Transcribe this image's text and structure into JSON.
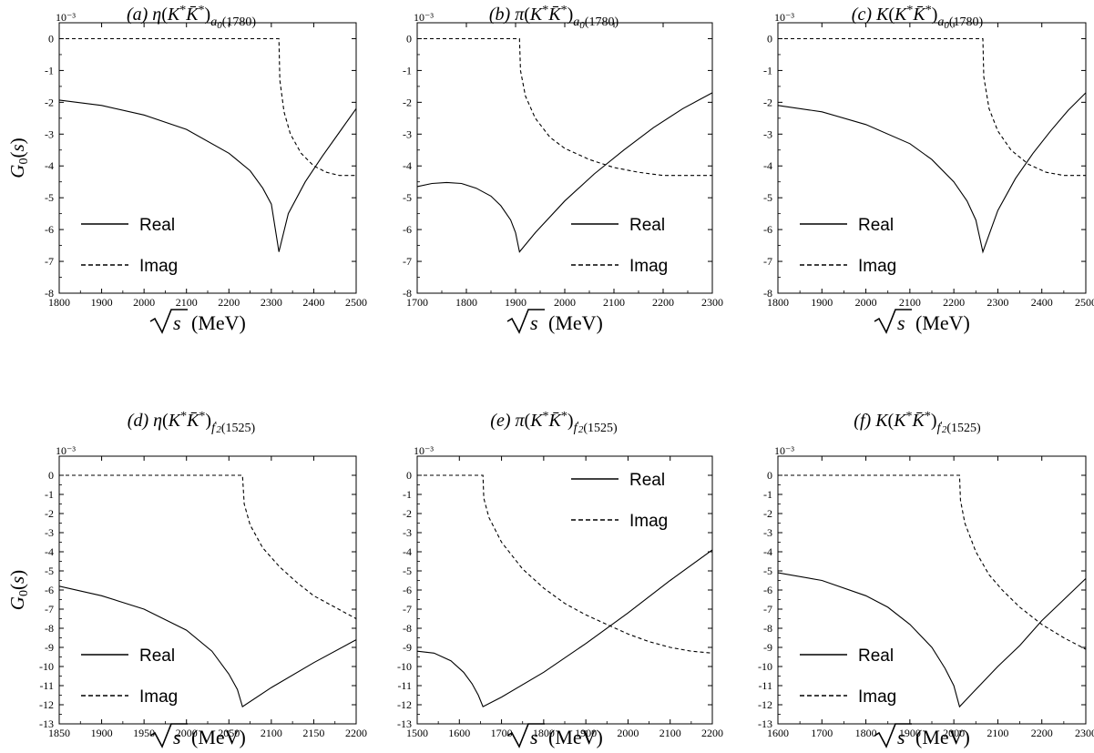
{
  "chart_data": [
    {
      "type": "line",
      "title_prefix": "(a)",
      "title_particle": "η",
      "title_subscript": "a",
      "title_subscript_index": "0",
      "title_subscript_mass": "(1780)",
      "xlabel": "(MeV)",
      "ylabel": "G₀(s)",
      "ylabel_shown": true,
      "y_scale_label": "10⁻³",
      "xlim": [
        1800,
        2500
      ],
      "ylim": [
        -8,
        0.5
      ],
      "xticks": [
        1800,
        1900,
        2000,
        2100,
        2200,
        2300,
        2400,
        2500
      ],
      "yticks": [
        0,
        -1,
        -2,
        -3,
        -4,
        -5,
        -6,
        -7,
        -8
      ],
      "legend": "lower-left",
      "series": [
        {
          "name": "Real",
          "style": "solid",
          "x": [
            1800,
            1900,
            2000,
            2100,
            2200,
            2250,
            2280,
            2300,
            2318,
            2340,
            2380,
            2420,
            2460,
            2500
          ],
          "y": [
            -1.93,
            -2.1,
            -2.4,
            -2.85,
            -3.6,
            -4.15,
            -4.7,
            -5.2,
            -6.7,
            -5.5,
            -4.5,
            -3.7,
            -2.95,
            -2.2
          ]
        },
        {
          "name": "Imag",
          "style": "dashed",
          "x": [
            1800,
            1900,
            2000,
            2100,
            2200,
            2300,
            2318,
            2320,
            2330,
            2345,
            2370,
            2400,
            2430,
            2460,
            2500
          ],
          "y": [
            0,
            0,
            0,
            0,
            0,
            0,
            0,
            -1.3,
            -2.3,
            -3.0,
            -3.6,
            -4.0,
            -4.2,
            -4.3,
            -4.3
          ]
        }
      ]
    },
    {
      "type": "line",
      "title_prefix": "(b)",
      "title_particle": "π",
      "title_subscript": "a",
      "title_subscript_index": "0",
      "title_subscript_mass": "(1780)",
      "xlabel": "(MeV)",
      "ylabel": "",
      "ylabel_shown": false,
      "y_scale_label": "10⁻³",
      "xlim": [
        1700,
        2300
      ],
      "ylim": [
        -8,
        0.5
      ],
      "xticks": [
        1700,
        1800,
        1900,
        2000,
        2100,
        2200,
        2300
      ],
      "yticks": [
        0,
        -1,
        -2,
        -3,
        -4,
        -5,
        -6,
        -7,
        -8
      ],
      "legend": "lower-right",
      "series": [
        {
          "name": "Real",
          "style": "solid",
          "x": [
            1700,
            1730,
            1760,
            1790,
            1820,
            1850,
            1870,
            1890,
            1900,
            1908,
            1940,
            2000,
            2060,
            2120,
            2180,
            2240,
            2300
          ],
          "y": [
            -4.65,
            -4.55,
            -4.52,
            -4.55,
            -4.7,
            -4.95,
            -5.25,
            -5.7,
            -6.1,
            -6.7,
            -6.1,
            -5.1,
            -4.25,
            -3.5,
            -2.8,
            -2.2,
            -1.7
          ]
        },
        {
          "name": "Imag",
          "style": "dashed",
          "x": [
            1700,
            1800,
            1908,
            1910,
            1920,
            1940,
            1970,
            2000,
            2050,
            2100,
            2150,
            2200,
            2250,
            2300
          ],
          "y": [
            0,
            0,
            0,
            -1.0,
            -1.8,
            -2.5,
            -3.1,
            -3.45,
            -3.8,
            -4.05,
            -4.2,
            -4.3,
            -4.3,
            -4.3
          ]
        }
      ]
    },
    {
      "type": "line",
      "title_prefix": "(c)",
      "title_particle": "K",
      "title_subscript": "a",
      "title_subscript_index": "0",
      "title_subscript_mass": "(1780)",
      "xlabel": "(MeV)",
      "ylabel": "",
      "ylabel_shown": false,
      "y_scale_label": "10⁻³",
      "xlim": [
        1800,
        2500
      ],
      "ylim": [
        -8,
        0.5
      ],
      "xticks": [
        1800,
        1900,
        2000,
        2100,
        2200,
        2300,
        2400,
        2500
      ],
      "yticks": [
        0,
        -1,
        -2,
        -3,
        -4,
        -5,
        -6,
        -7,
        -8
      ],
      "legend": "lower-left",
      "series": [
        {
          "name": "Real",
          "style": "solid",
          "x": [
            1800,
            1900,
            2000,
            2100,
            2150,
            2200,
            2230,
            2250,
            2266,
            2300,
            2340,
            2380,
            2420,
            2460,
            2500
          ],
          "y": [
            -2.1,
            -2.3,
            -2.7,
            -3.3,
            -3.8,
            -4.5,
            -5.1,
            -5.7,
            -6.7,
            -5.4,
            -4.4,
            -3.6,
            -2.9,
            -2.25,
            -1.7
          ]
        },
        {
          "name": "Imag",
          "style": "dashed",
          "x": [
            1800,
            1900,
            2000,
            2100,
            2200,
            2266,
            2268,
            2280,
            2300,
            2330,
            2370,
            2410,
            2450,
            2500
          ],
          "y": [
            0,
            0,
            0,
            0,
            0,
            0,
            -1.2,
            -2.2,
            -2.9,
            -3.5,
            -3.95,
            -4.2,
            -4.3,
            -4.3
          ]
        }
      ]
    },
    {
      "type": "line",
      "title_prefix": "(d)",
      "title_particle": "η",
      "title_subscript": "f",
      "title_subscript_index": "2",
      "title_subscript_mass": "(1525)",
      "xlabel": "(MeV)",
      "ylabel": "G₀(s)",
      "ylabel_shown": true,
      "y_scale_label": "10⁻³",
      "xlim": [
        1850,
        2200
      ],
      "ylim": [
        -13,
        1
      ],
      "xticks": [
        1850,
        1900,
        1950,
        2000,
        2050,
        2100,
        2150,
        2200
      ],
      "yticks": [
        0,
        -1,
        -2,
        -3,
        -4,
        -5,
        -6,
        -7,
        -8,
        -9,
        -10,
        -11,
        -12,
        -13
      ],
      "legend": "lower-left",
      "series": [
        {
          "name": "Real",
          "style": "solid",
          "x": [
            1850,
            1900,
            1950,
            2000,
            2030,
            2050,
            2060,
            2066,
            2100,
            2150,
            2200
          ],
          "y": [
            -5.8,
            -6.3,
            -7.0,
            -8.1,
            -9.2,
            -10.4,
            -11.2,
            -12.1,
            -11.1,
            -9.8,
            -8.6
          ]
        },
        {
          "name": "Imag",
          "style": "dashed",
          "x": [
            1850,
            1950,
            2066,
            2068,
            2075,
            2090,
            2110,
            2130,
            2150,
            2175,
            2200
          ],
          "y": [
            0,
            0,
            0,
            -1.5,
            -2.6,
            -3.8,
            -4.8,
            -5.6,
            -6.3,
            -6.9,
            -7.5
          ]
        }
      ]
    },
    {
      "type": "line",
      "title_prefix": "(e)",
      "title_particle": "π",
      "title_subscript": "f",
      "title_subscript_index": "2",
      "title_subscript_mass": "(1525)",
      "xlabel": "(MeV)",
      "ylabel": "",
      "ylabel_shown": false,
      "y_scale_label": "10⁻³",
      "xlim": [
        1500,
        2200
      ],
      "ylim": [
        -13,
        1
      ],
      "xticks": [
        1500,
        1600,
        1700,
        1800,
        1900,
        2000,
        2100,
        2200
      ],
      "yticks": [
        0,
        -1,
        -2,
        -3,
        -4,
        -5,
        -6,
        -7,
        -8,
        -9,
        -10,
        -11,
        -12,
        -13
      ],
      "legend": "upper-right",
      "series": [
        {
          "name": "Real",
          "style": "solid",
          "x": [
            1500,
            1540,
            1580,
            1610,
            1630,
            1645,
            1656,
            1700,
            1800,
            1900,
            2000,
            2100,
            2200
          ],
          "y": [
            -9.2,
            -9.3,
            -9.7,
            -10.3,
            -10.9,
            -11.5,
            -12.1,
            -11.6,
            -10.3,
            -8.8,
            -7.2,
            -5.5,
            -3.9
          ]
        },
        {
          "name": "Imag",
          "style": "dashed",
          "x": [
            1500,
            1600,
            1656,
            1658,
            1670,
            1700,
            1750,
            1800,
            1850,
            1900,
            1950,
            2000,
            2050,
            2100,
            2150,
            2200
          ],
          "y": [
            0,
            0,
            0,
            -1.2,
            -2.2,
            -3.5,
            -4.9,
            -5.9,
            -6.7,
            -7.3,
            -7.8,
            -8.3,
            -8.7,
            -9.0,
            -9.2,
            -9.3
          ]
        }
      ]
    },
    {
      "type": "line",
      "title_prefix": "(f)",
      "title_particle": "K",
      "title_subscript": "f",
      "title_subscript_index": "2",
      "title_subscript_mass": "(1525)",
      "xlabel": "(MeV)",
      "ylabel": "",
      "ylabel_shown": false,
      "y_scale_label": "10⁻³",
      "xlim": [
        1600,
        2300
      ],
      "ylim": [
        -13,
        1
      ],
      "xticks": [
        1600,
        1700,
        1800,
        1900,
        2000,
        2100,
        2200,
        2300
      ],
      "yticks": [
        0,
        -1,
        -2,
        -3,
        -4,
        -5,
        -6,
        -7,
        -8,
        -9,
        -10,
        -11,
        -12,
        -13
      ],
      "legend": "lower-left",
      "series": [
        {
          "name": "Real",
          "style": "solid",
          "x": [
            1600,
            1700,
            1800,
            1850,
            1900,
            1950,
            1980,
            2000,
            2013,
            2050,
            2100,
            2150,
            2200,
            2250,
            2300
          ],
          "y": [
            -5.1,
            -5.5,
            -6.3,
            -6.9,
            -7.8,
            -9.0,
            -10.1,
            -11.0,
            -12.1,
            -11.2,
            -10.0,
            -8.9,
            -7.6,
            -6.5,
            -5.4
          ]
        },
        {
          "name": "Imag",
          "style": "dashed",
          "x": [
            1600,
            1800,
            2013,
            2015,
            2025,
            2050,
            2080,
            2110,
            2150,
            2200,
            2250,
            2300
          ],
          "y": [
            0,
            0,
            0,
            -1.3,
            -2.5,
            -4.0,
            -5.2,
            -6.0,
            -6.9,
            -7.8,
            -8.5,
            -9.1
          ]
        }
      ]
    }
  ]
}
